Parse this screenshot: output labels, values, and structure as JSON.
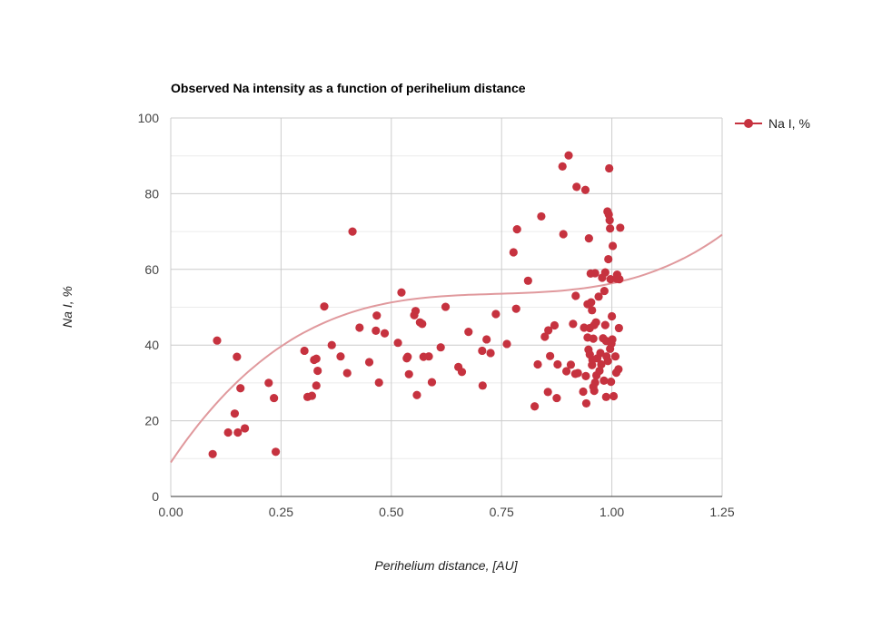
{
  "colors": {
    "point": "#c6323f",
    "trend": "#e0999d",
    "grid": "#cccccc",
    "axis": "#333333"
  },
  "chart_data": {
    "type": "scatter",
    "title": "Observed Na intensity as a function of perihelium distance",
    "xlabel": "Perihelium distance, [AU]",
    "ylabel": "Na I, %",
    "xlim": [
      0,
      1.25
    ],
    "ylim": [
      0,
      100
    ],
    "x_ticks": [
      "0.00",
      "0.25",
      "0.50",
      "0.75",
      "1.00",
      "1.25"
    ],
    "y_ticks": [
      "0",
      "20",
      "40",
      "60",
      "80",
      "100"
    ],
    "grid": true,
    "legend": {
      "position": "right",
      "entries": [
        "Na I, %"
      ]
    },
    "trendline": {
      "type": "polynomial",
      "degree": 3,
      "coefficients": [
        9.0,
        173.6,
        -230.0,
        103.7
      ]
    },
    "series": [
      {
        "name": "Na I, %",
        "points": [
          [
            0.095,
            11.2
          ],
          [
            0.105,
            41.2
          ],
          [
            0.13,
            16.9
          ],
          [
            0.145,
            21.9
          ],
          [
            0.15,
            36.9
          ],
          [
            0.152,
            16.9
          ],
          [
            0.158,
            28.6
          ],
          [
            0.168,
            18.0
          ],
          [
            0.222,
            30.0
          ],
          [
            0.234,
            26.0
          ],
          [
            0.238,
            11.8
          ],
          [
            0.303,
            38.5
          ],
          [
            0.31,
            26.3
          ],
          [
            0.32,
            26.6
          ],
          [
            0.325,
            36.1
          ],
          [
            0.33,
            36.4
          ],
          [
            0.33,
            29.3
          ],
          [
            0.333,
            33.2
          ],
          [
            0.348,
            50.2
          ],
          [
            0.365,
            40.0
          ],
          [
            0.385,
            37.0
          ],
          [
            0.4,
            32.6
          ],
          [
            0.412,
            70.0
          ],
          [
            0.428,
            44.6
          ],
          [
            0.45,
            35.5
          ],
          [
            0.465,
            43.8
          ],
          [
            0.467,
            47.8
          ],
          [
            0.472,
            30.1
          ],
          [
            0.485,
            43.1
          ],
          [
            0.515,
            40.6
          ],
          [
            0.523,
            53.9
          ],
          [
            0.535,
            36.5
          ],
          [
            0.537,
            36.9
          ],
          [
            0.54,
            32.3
          ],
          [
            0.552,
            47.9
          ],
          [
            0.555,
            49.0
          ],
          [
            0.558,
            26.8
          ],
          [
            0.565,
            46.0
          ],
          [
            0.57,
            45.6
          ],
          [
            0.573,
            36.9
          ],
          [
            0.585,
            37.0
          ],
          [
            0.592,
            30.2
          ],
          [
            0.612,
            39.4
          ],
          [
            0.623,
            50.1
          ],
          [
            0.652,
            34.2
          ],
          [
            0.66,
            32.9
          ],
          [
            0.675,
            43.5
          ],
          [
            0.706,
            38.5
          ],
          [
            0.707,
            29.3
          ],
          [
            0.716,
            41.5
          ],
          [
            0.725,
            37.9
          ],
          [
            0.737,
            48.2
          ],
          [
            0.762,
            40.3
          ],
          [
            0.777,
            64.5
          ],
          [
            0.783,
            49.6
          ],
          [
            0.785,
            70.6
          ],
          [
            0.81,
            57.0
          ],
          [
            0.825,
            23.8
          ],
          [
            0.832,
            34.9
          ],
          [
            0.84,
            74.0
          ],
          [
            0.848,
            42.2
          ],
          [
            0.855,
            27.6
          ],
          [
            0.856,
            43.9
          ],
          [
            0.86,
            37.1
          ],
          [
            0.87,
            45.2
          ],
          [
            0.875,
            26.0
          ],
          [
            0.877,
            34.9
          ],
          [
            0.888,
            87.2
          ],
          [
            0.89,
            69.3
          ],
          [
            0.897,
            33.1
          ],
          [
            0.902,
            90.1
          ],
          [
            0.907,
            34.8
          ],
          [
            0.912,
            45.6
          ],
          [
            0.917,
            32.4
          ],
          [
            0.918,
            53.0
          ],
          [
            0.92,
            81.8
          ],
          [
            0.923,
            32.6
          ],
          [
            0.935,
            27.7
          ],
          [
            0.937,
            44.6
          ],
          [
            0.94,
            81.0
          ],
          [
            0.941,
            31.8
          ],
          [
            0.942,
            24.6
          ],
          [
            0.945,
            42.0
          ],
          [
            0.945,
            50.8
          ],
          [
            0.947,
            38.8
          ],
          [
            0.948,
            68.2
          ],
          [
            0.95,
            37.5
          ],
          [
            0.95,
            44.5
          ],
          [
            0.952,
            58.9
          ],
          [
            0.953,
            51.3
          ],
          [
            0.955,
            34.7
          ],
          [
            0.955,
            49.2
          ],
          [
            0.956,
            36.1
          ],
          [
            0.958,
            41.7
          ],
          [
            0.958,
            29.0
          ],
          [
            0.96,
            45.3
          ],
          [
            0.96,
            27.9
          ],
          [
            0.962,
            30.1
          ],
          [
            0.962,
            59.0
          ],
          [
            0.964,
            46.0
          ],
          [
            0.965,
            32.0
          ],
          [
            0.967,
            36.5
          ],
          [
            0.97,
            52.8
          ],
          [
            0.972,
            33.2
          ],
          [
            0.974,
            37.9
          ],
          [
            0.976,
            34.9
          ],
          [
            0.978,
            57.8
          ],
          [
            0.98,
            41.8
          ],
          [
            0.982,
            30.6
          ],
          [
            0.983,
            54.3
          ],
          [
            0.985,
            45.3
          ],
          [
            0.985,
            59.2
          ],
          [
            0.987,
            26.3
          ],
          [
            0.987,
            41.1
          ],
          [
            0.988,
            37.0
          ],
          [
            0.99,
            75.3
          ],
          [
            0.991,
            35.8
          ],
          [
            0.992,
            62.7
          ],
          [
            0.993,
            74.5
          ],
          [
            0.994,
            86.7
          ],
          [
            0.995,
            73.0
          ],
          [
            0.996,
            70.8
          ],
          [
            0.996,
            39.0
          ],
          [
            0.997,
            57.4
          ],
          [
            0.998,
            30.3
          ],
          [
            0.999,
            40.4
          ],
          [
            1.0,
            47.6
          ],
          [
            1.001,
            41.5
          ],
          [
            1.002,
            66.2
          ],
          [
            1.004,
            26.5
          ],
          [
            1.008,
            37.0
          ],
          [
            1.01,
            32.7
          ],
          [
            1.011,
            57.5
          ],
          [
            1.012,
            58.6
          ],
          [
            1.015,
            33.6
          ],
          [
            1.016,
            44.5
          ],
          [
            1.017,
            57.4
          ],
          [
            1.019,
            71.0
          ]
        ]
      }
    ]
  }
}
